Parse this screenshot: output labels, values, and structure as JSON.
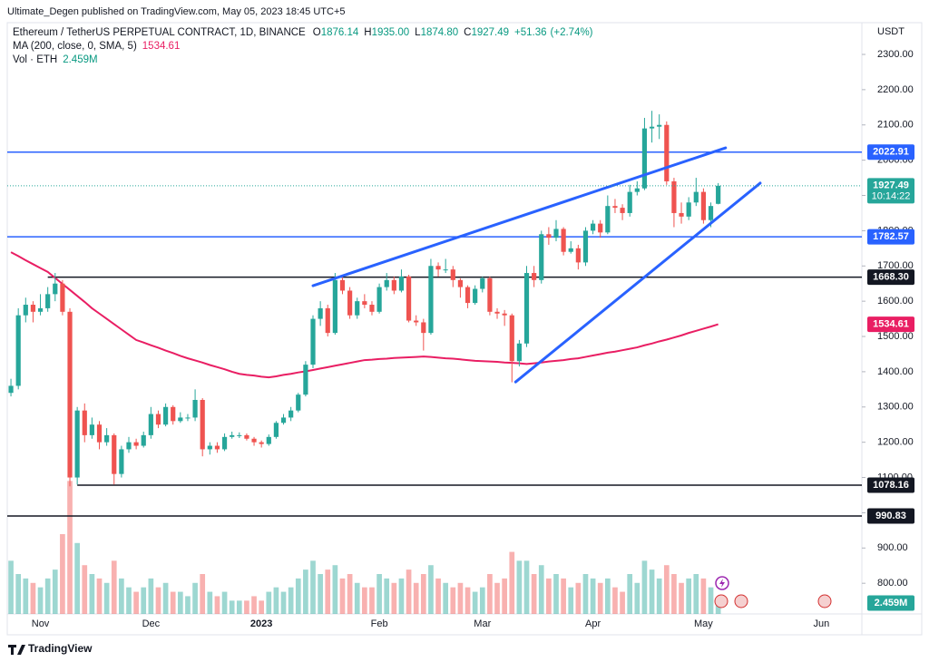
{
  "chart_data": {
    "type": "candlestick",
    "publisher": "Ultimate_Degen published on TradingView.com, May 05, 2023 18:45 UTC+5",
    "title": "Ethereum / TetherUS PERPETUAL CONTRACT, 1D, BINANCE",
    "header_ohlc": [
      {
        "key": "O",
        "value": 1876.14
      },
      {
        "key": "H",
        "value": 1935,
        "label": "1935.00"
      },
      {
        "key": "L",
        "value": 1874.8,
        "label": "1874.80"
      },
      {
        "key": "C",
        "value": 1927.49
      }
    ],
    "change": {
      "value": 51.36,
      "label": "+51.36"
    },
    "change_pct": {
      "value": 2.74,
      "label": "(+2.74%)"
    },
    "currency": "USDT",
    "countdown": "10:14:22",
    "footer": "TradingView",
    "up_color": "#26a69a",
    "down_color": "#ef5350",
    "categories": [
      null,
      null,
      null,
      null,
      "Nov",
      null,
      null,
      null,
      null,
      null,
      null,
      null,
      null,
      null,
      null,
      null,
      null,
      null,
      null,
      "Dec",
      null,
      null,
      null,
      null,
      null,
      null,
      null,
      null,
      null,
      null,
      null,
      null,
      null,
      null,
      "2023",
      null,
      null,
      null,
      null,
      null,
      null,
      null,
      null,
      null,
      null,
      null,
      null,
      null,
      null,
      null,
      "Feb",
      null,
      null,
      null,
      null,
      null,
      null,
      null,
      null,
      null,
      null,
      null,
      null,
      null,
      "Mar",
      null,
      null,
      null,
      null,
      null,
      null,
      null,
      null,
      null,
      null,
      null,
      null,
      null,
      null,
      "Apr",
      null,
      null,
      null,
      null,
      null,
      null,
      null,
      null,
      null,
      null,
      null,
      null,
      null,
      null,
      "May",
      null,
      null,
      null,
      null,
      null,
      null,
      null,
      null,
      null,
      null,
      null,
      null,
      null,
      null,
      null,
      "Jun",
      null,
      null,
      null,
      null,
      null
    ],
    "open": [
      1340,
      1360,
      1560,
      1590,
      1570,
      1580,
      1620,
      1650,
      1570,
      1100,
      1290,
      1220,
      1250,
      1200,
      1220,
      1110,
      1180,
      1200,
      1190,
      1220,
      1280,
      1250,
      1300,
      1260,
      1270,
      1270,
      1320,
      1180,
      1190,
      1180,
      1215,
      1220,
      1220,
      1210,
      1200,
      1195,
      1215,
      1255,
      1270,
      1290,
      1335,
      1420,
      1550,
      1580,
      1510,
      1660,
      1630,
      1560,
      1600,
      1590,
      1570,
      1640,
      1660,
      1630,
      1670,
      1545,
      1540,
      1510,
      1700,
      1690,
      1690,
      1660,
      1640,
      1595,
      1635,
      1665,
      1570,
      1565,
      1560,
      1430,
      1480,
      1680,
      1660,
      1790,
      1780,
      1805,
      1740,
      1750,
      1710,
      1800,
      1820,
      1795,
      1870,
      1865,
      1850,
      1910,
      1920,
      2090,
      2095,
      2100,
      1940,
      1850,
      1840,
      1880,
      1910,
      1830,
      1876.14,
      null,
      null,
      null,
      null,
      null,
      null,
      null,
      null,
      null,
      null,
      null,
      null,
      null,
      null,
      null,
      null,
      null,
      null,
      null
    ],
    "high": [
      1380,
      1580,
      1610,
      1600,
      1620,
      1640,
      1680,
      1660,
      1580,
      1300,
      1310,
      1270,
      1260,
      1240,
      1225,
      1190,
      1215,
      1210,
      1230,
      1300,
      1290,
      1310,
      1305,
      1285,
      1280,
      1350,
      1325,
      1200,
      1200,
      1225,
      1230,
      1228,
      1225,
      1215,
      1205,
      1222,
      1260,
      1280,
      1300,
      1340,
      1430,
      1560,
      1600,
      1590,
      1680,
      1670,
      1640,
      1610,
      1620,
      1600,
      1650,
      1680,
      1670,
      1690,
      1675,
      1560,
      1550,
      1720,
      1710,
      1720,
      1700,
      1665,
      1645,
      1645,
      1670,
      1670,
      1580,
      1575,
      1565,
      1490,
      1700,
      1700,
      1800,
      1810,
      1830,
      1810,
      1770,
      1760,
      1810,
      1830,
      1830,
      1900,
      1890,
      1875,
      1930,
      1940,
      2120,
      2140,
      2130,
      2110,
      1950,
      1880,
      1895,
      1950,
      1920,
      1880,
      1935,
      null,
      null,
      null,
      null,
      null,
      null,
      null,
      null,
      null,
      null,
      null,
      null,
      null,
      null,
      null,
      null,
      null,
      null,
      null
    ],
    "low": [
      1330,
      1350,
      1540,
      1540,
      1560,
      1570,
      1600,
      1560,
      1075,
      1080,
      1200,
      1210,
      1180,
      1190,
      1080,
      1100,
      1170,
      1180,
      1185,
      1210,
      1240,
      1245,
      1250,
      1255,
      1260,
      1260,
      1160,
      1165,
      1170,
      1175,
      1210,
      1212,
      1205,
      1190,
      1185,
      1190,
      1210,
      1250,
      1260,
      1285,
      1330,
      1410,
      1530,
      1500,
      1505,
      1620,
      1550,
      1550,
      1580,
      1560,
      1565,
      1630,
      1620,
      1625,
      1540,
      1530,
      1460,
      1505,
      1670,
      1680,
      1640,
      1610,
      1580,
      1590,
      1625,
      1560,
      1550,
      1530,
      1370,
      1415,
      1470,
      1640,
      1650,
      1760,
      1770,
      1730,
      1735,
      1690,
      1700,
      1790,
      1780,
      1790,
      1850,
      1830,
      1840,
      1900,
      1915,
      2050,
      2060,
      1930,
      1810,
      1820,
      1830,
      1870,
      1820,
      1810,
      1874.8,
      null,
      null,
      null,
      null,
      null,
      null,
      null,
      null,
      null,
      null,
      null,
      null,
      null,
      null,
      null,
      null,
      null,
      null,
      null
    ],
    "close": [
      1360,
      1560,
      1590,
      1570,
      1580,
      1620,
      1650,
      1570,
      1100,
      1290,
      1220,
      1250,
      1200,
      1220,
      1110,
      1180,
      1200,
      1190,
      1220,
      1280,
      1250,
      1300,
      1260,
      1270,
      1270,
      1320,
      1180,
      1190,
      1180,
      1215,
      1220,
      1220,
      1210,
      1200,
      1195,
      1215,
      1255,
      1270,
      1290,
      1335,
      1420,
      1550,
      1580,
      1510,
      1660,
      1630,
      1560,
      1600,
      1590,
      1570,
      1640,
      1660,
      1630,
      1670,
      1545,
      1540,
      1510,
      1700,
      1690,
      1690,
      1660,
      1640,
      1595,
      1635,
      1665,
      1570,
      1565,
      1560,
      1430,
      1480,
      1680,
      1660,
      1790,
      1780,
      1805,
      1740,
      1750,
      1710,
      1800,
      1820,
      1795,
      1870,
      1865,
      1850,
      1910,
      1920,
      2090,
      2095,
      2100,
      1940,
      1850,
      1840,
      1880,
      1910,
      1830,
      1870,
      1927.49,
      null,
      null,
      null,
      null,
      null,
      null,
      null,
      null,
      null,
      null,
      null,
      null,
      null,
      null,
      null,
      null,
      null,
      null,
      null
    ],
    "ma": {
      "name": "MA (200, close, 0, SMA, 5)",
      "color": "#e91e63",
      "values": [
        1739,
        1728,
        1716,
        1705,
        1694,
        1683,
        1666,
        1649,
        1632,
        1615,
        1598,
        1580,
        1565,
        1550,
        1535,
        1520,
        1505,
        1490,
        1483,
        1475,
        1468,
        1460,
        1453,
        1445,
        1438,
        1432,
        1426,
        1419,
        1413,
        1407,
        1400,
        1394,
        1391,
        1389,
        1386,
        1384,
        1387,
        1391,
        1394,
        1398,
        1401,
        1405,
        1409,
        1413,
        1417,
        1421,
        1425,
        1429,
        1433,
        1434,
        1436,
        1437,
        1439,
        1440,
        1441,
        1442,
        1443,
        1442,
        1440,
        1438,
        1437,
        1435,
        1433,
        1431,
        1430,
        1429,
        1428,
        1426,
        1425,
        1424,
        1422,
        1424,
        1426,
        1429,
        1431,
        1433,
        1436,
        1438,
        1442,
        1446,
        1450,
        1454,
        1457,
        1461,
        1465,
        1469,
        1475,
        1480,
        1486,
        1491,
        1497,
        1503,
        1510,
        1516,
        1522,
        1528,
        1534.61,
        null,
        null,
        null,
        null,
        null,
        null,
        null,
        null,
        null,
        null,
        null,
        null,
        null,
        null,
        null,
        null,
        null,
        null,
        null
      ]
    },
    "volume": {
      "name": "Vol · ETH",
      "values": [
        12,
        9,
        8,
        7,
        6,
        8,
        10,
        18,
        30,
        16,
        11,
        9,
        8,
        7,
        12,
        8,
        6,
        5,
        6,
        8,
        6,
        7,
        5,
        5,
        4,
        7,
        9,
        5,
        4,
        5,
        3,
        3,
        3,
        4,
        3,
        5,
        6,
        5,
        6,
        8,
        10,
        12,
        9,
        10,
        11,
        8,
        9,
        7,
        6,
        6,
        9,
        8,
        7,
        8,
        10,
        7,
        9,
        11,
        8,
        7,
        6,
        7,
        6,
        5,
        6,
        9,
        7,
        8,
        14,
        12,
        12,
        9,
        11,
        8,
        9,
        8,
        6,
        7,
        9,
        8,
        7,
        8,
        6,
        5,
        9,
        7,
        12,
        10,
        8,
        11,
        9,
        7,
        8,
        9,
        8,
        6,
        2.459,
        null,
        null,
        null,
        null,
        null,
        null,
        null,
        null,
        null,
        null,
        null,
        null,
        null,
        null,
        null,
        null,
        null,
        null,
        null
      ],
      "value_labels": [
        null,
        null,
        null,
        null,
        null,
        null,
        null,
        null,
        null,
        null,
        null,
        null,
        null,
        null,
        null,
        null,
        null,
        null,
        null,
        null,
        null,
        null,
        null,
        null,
        null,
        null,
        null,
        null,
        null,
        null,
        null,
        null,
        null,
        null,
        null,
        null,
        null,
        null,
        null,
        null,
        null,
        null,
        null,
        null,
        null,
        null,
        null,
        null,
        null,
        null,
        null,
        null,
        null,
        null,
        null,
        null,
        null,
        null,
        null,
        null,
        null,
        null,
        null,
        null,
        null,
        null,
        null,
        null,
        null,
        null,
        null,
        null,
        null,
        null,
        null,
        null,
        null,
        null,
        null,
        null,
        null,
        null,
        null,
        null,
        null,
        null,
        null,
        null,
        null,
        null,
        null,
        null,
        null,
        null,
        null,
        null,
        "2.459M",
        null,
        null,
        null,
        null,
        null,
        null,
        null,
        null,
        null,
        null,
        null,
        null,
        null,
        null,
        null,
        null,
        null,
        null,
        null
      ]
    },
    "vlim": [
      0,
      36
    ],
    "ylim": [
      713,
      2390
    ],
    "yticks": [
      {
        "value": 800,
        "label": "800.00"
      },
      {
        "value": 900,
        "label": "900.00"
      },
      {
        "value": 1000,
        "label": "1000.00"
      },
      {
        "value": 1100,
        "label": "1100.00"
      },
      {
        "value": 1200,
        "label": "1200.00"
      },
      {
        "value": 1300,
        "label": "1300.00"
      },
      {
        "value": 1400,
        "label": "1400.00"
      },
      {
        "value": 1500,
        "label": "1500.00"
      },
      {
        "value": 1600,
        "label": "1600.00"
      },
      {
        "value": 1700,
        "label": "1700.00"
      },
      {
        "value": 1800,
        "label": "1800.00"
      },
      {
        "value": 1900,
        "label": "1900.00"
      },
      {
        "value": 2000,
        "label": "2000.00"
      },
      {
        "value": 2100,
        "label": "2100.00"
      },
      {
        "value": 2200,
        "label": "2200.00"
      },
      {
        "value": 2300,
        "label": "2300.00"
      }
    ],
    "grid": false,
    "levels": [
      {
        "value": 2022.91,
        "color": "#2962ff"
      },
      {
        "value": 1782.57,
        "color": "#2962ff"
      },
      {
        "value": 1668.3,
        "label": "1668.30",
        "color": "#131722",
        "start": 5
      },
      {
        "value": 1078.16,
        "color": "#131722",
        "start": 9
      },
      {
        "value": 990.83,
        "color": "#131722"
      }
    ],
    "trendlines": [
      {
        "x": [
          41,
          97
        ],
        "y": [
          1644,
          2035
        ],
        "color": "#2962ff"
      },
      {
        "x": [
          68.5,
          101.7
        ],
        "y": [
          1371,
          1935
        ],
        "color": "#2962ff"
      }
    ]
  }
}
